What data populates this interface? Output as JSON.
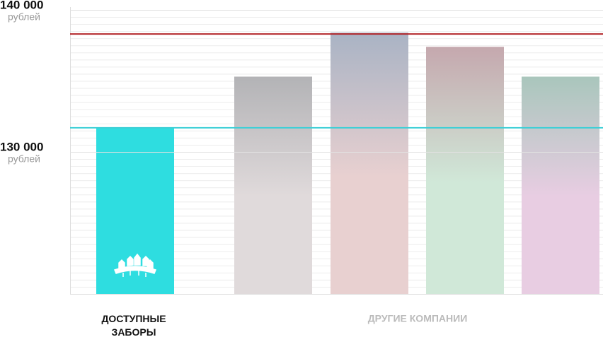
{
  "chart_data": {
    "type": "bar",
    "categories": [
      "ДОСТУПНЫЕ ЗАБОРЫ",
      null,
      null,
      null,
      null
    ],
    "group_label": "ДРУГИЕ КОМПАНИИ",
    "values": [
      131700,
      135300,
      138400,
      137400,
      135300
    ],
    "colors": [
      [
        "#2edde0",
        "#2edde0"
      ],
      [
        "#b3b3b6",
        "#e0dadb"
      ],
      [
        "#a9b3c4",
        "#e8d0d0"
      ],
      [
        "#c5a8ae",
        "#d0e8d8"
      ],
      [
        "#a9c6bc",
        "#e8cde2"
      ]
    ],
    "ylim": [
      120000,
      140000
    ],
    "yticks": [
      {
        "value": 130000,
        "label": "130 000"
      },
      {
        "value": 140000,
        "label": "140 000"
      }
    ],
    "ytick_unit": "рублей",
    "reference_lines": [
      {
        "value": 138300,
        "color": "#b3262a"
      },
      {
        "value": 131700,
        "color": "#3ccfd6"
      }
    ]
  }
}
